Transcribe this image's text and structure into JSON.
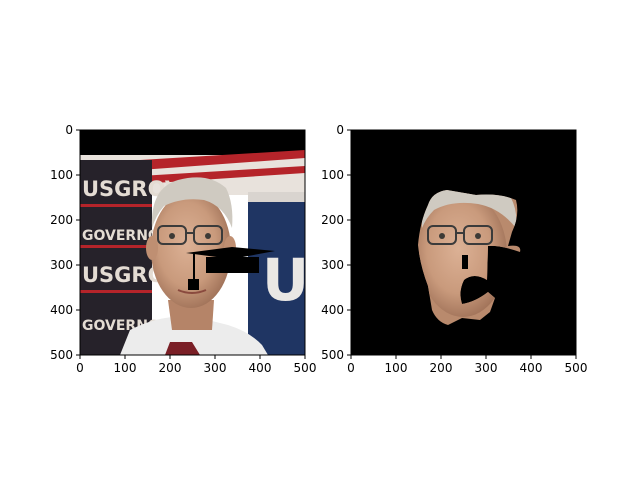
{
  "panels": [
    {
      "id": "left",
      "kind": "photo-with-overlay",
      "x_ticks": [
        "0",
        "100",
        "200",
        "300",
        "400",
        "500"
      ],
      "y_ticks": [
        "0",
        "100",
        "200",
        "300",
        "400",
        "500"
      ],
      "banner_text": [
        "USGROVE",
        "GOVERNOR",
        "USGROVE",
        "GOVERNOR"
      ],
      "sign_text": "US"
    },
    {
      "id": "right",
      "kind": "masked-face",
      "x_ticks": [
        "0",
        "100",
        "200",
        "300",
        "400",
        "500"
      ],
      "y_ticks": [
        "0",
        "100",
        "200",
        "300",
        "400",
        "500"
      ]
    }
  ],
  "colors": {
    "background": "#ffffff",
    "frame": "#000000",
    "mask": "#000000",
    "skin": "#c99a7c",
    "hair": "#cfcac1",
    "banner_dark": "#26222a",
    "banner_light": "#e4dcd3",
    "sign_blue": "#1f3563",
    "red_stripe": "#b5242a",
    "shirt": "#ececec"
  }
}
